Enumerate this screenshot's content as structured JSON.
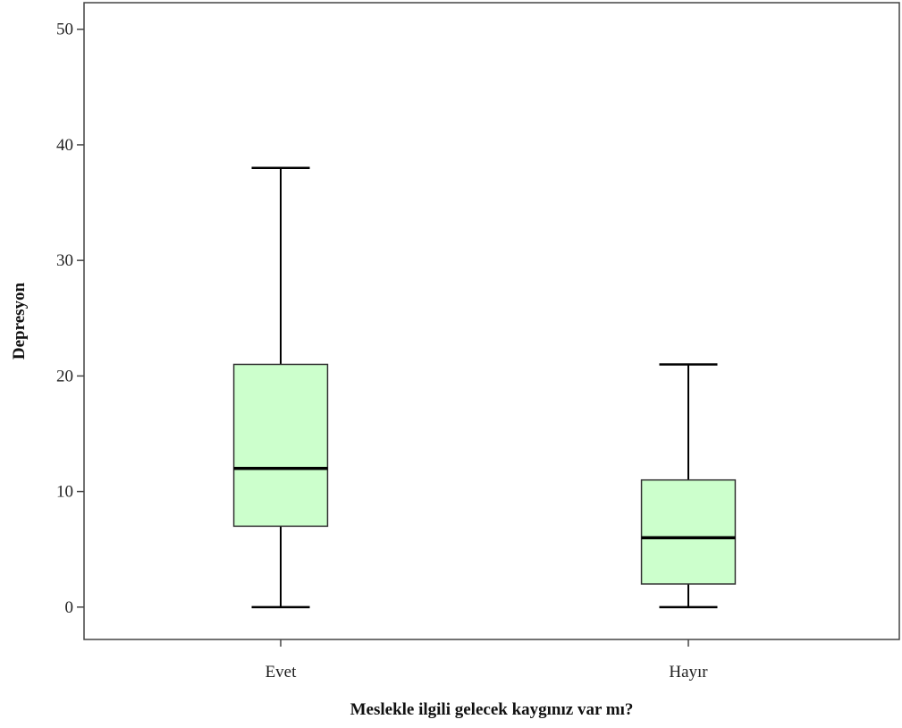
{
  "chart_data": {
    "type": "box",
    "xlabel": "Meslekle ilgili gelecek kaygınız var mı?",
    "ylabel": "Depresyon",
    "ylim": [
      -2.8,
      52.3
    ],
    "yticks": [
      0,
      10,
      20,
      30,
      40,
      50
    ],
    "grid": false,
    "categories": [
      "Evet",
      "Hayır"
    ],
    "boxes": [
      {
        "category": "Evet",
        "min": 0,
        "q1": 7,
        "median": 12,
        "q3": 21,
        "max": 38
      },
      {
        "category": "Hayır",
        "min": 0,
        "q1": 2,
        "median": 6,
        "q3": 11,
        "max": 21
      }
    ],
    "colors": {
      "box_fill": "#ccffcc",
      "stroke": "#000000",
      "axis": "#444444"
    }
  }
}
